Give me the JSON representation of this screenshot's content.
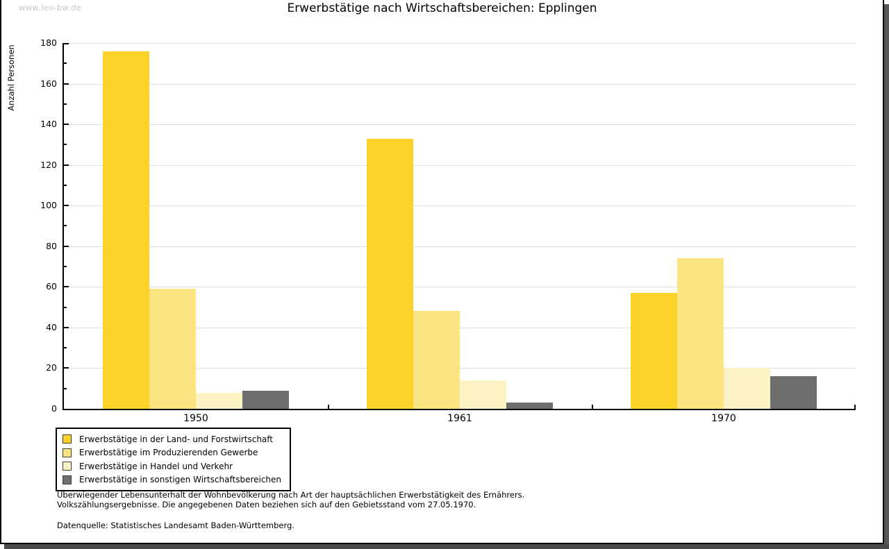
{
  "watermark": "www.leo-bw.de",
  "title": "Erwerbstätige nach Wirtschaftsbereichen: Epplingen",
  "chart_data": {
    "type": "bar",
    "title": "Erwerbstätige nach Wirtschaftsbereichen: Epplingen",
    "xlabel": "",
    "ylabel": "Anzahl Personen",
    "categories": [
      "1950",
      "1961",
      "1970"
    ],
    "series": [
      {
        "name": "Erwerbstätige in der Land- und Forstwirtschaft",
        "color": "#FCD32B",
        "values": [
          176,
          133,
          57
        ]
      },
      {
        "name": "Erwerbstätige im Produzierenden Gewerbe",
        "color": "#FAE381",
        "values": [
          59,
          48,
          74
        ]
      },
      {
        "name": "Erwerbstätige in Handel und Verkehr",
        "color": "#FCF2C4",
        "values": [
          8,
          14,
          20
        ]
      },
      {
        "name": "Erwerbstätige in sonstigen Wirtschaftsbereichen",
        "color": "#6F6E6E",
        "values": [
          9,
          3,
          16
        ]
      }
    ],
    "ylim": [
      0,
      180
    ],
    "yticks": [
      0,
      20,
      40,
      60,
      80,
      100,
      120,
      140,
      160,
      180
    ],
    "minor_tick_step": 10,
    "grid": true,
    "grid_color": "#e0e0e0",
    "legend_position": "bottom-left"
  },
  "footnotes": {
    "line1": "Überwiegender Lebensunterhalt der Wohnbevölkerung nach Art der hauptsächlichen Erwerbstätigkeit des Ernährers.",
    "line2": "Volkszählungsergebnisse. Die angegebenen Daten beziehen sich auf den Gebietsstand vom 27.05.1970.",
    "source": "Datenquelle: Statistisches Landesamt Baden-Württemberg."
  }
}
